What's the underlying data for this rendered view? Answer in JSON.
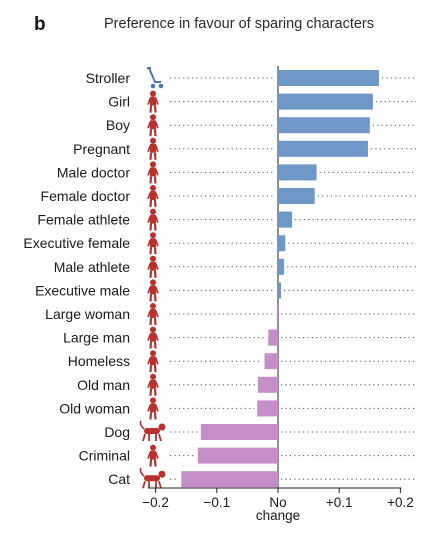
{
  "panel_letter": "b",
  "chart_data": {
    "type": "bar",
    "orientation": "horizontal",
    "title": "Preference in favour of sparing characters",
    "categories": [
      "Stroller",
      "Girl",
      "Boy",
      "Pregnant",
      "Male doctor",
      "Female doctor",
      "Female athlete",
      "Executive female",
      "Male athlete",
      "Executive male",
      "Large woman",
      "Large man",
      "Homeless",
      "Old man",
      "Old woman",
      "Dog",
      "Criminal",
      "Cat"
    ],
    "values": [
      0.165,
      0.155,
      0.15,
      0.147,
      0.063,
      0.06,
      0.023,
      0.012,
      0.01,
      0.005,
      -0.002,
      -0.016,
      -0.022,
      -0.033,
      -0.034,
      -0.126,
      -0.131,
      -0.158
    ],
    "xlim": [
      -0.24,
      0.22
    ],
    "xticks": [
      -0.2,
      -0.1,
      0,
      0.1,
      0.2
    ],
    "xtick_labels": [
      "−0.2",
      "−0.1",
      "No change",
      "+0.1",
      "+0.2"
    ],
    "colors": {
      "positive": "#6f98c9",
      "negative": "#c68ec8",
      "icon_human": "#b8312f",
      "icon_stroller": "#4a79b8",
      "dotted": "#555555"
    },
    "icons": [
      "stroller-icon",
      "girl-icon",
      "boy-icon",
      "pregnant-icon",
      "male-doctor-icon",
      "female-doctor-icon",
      "female-athlete-icon",
      "executive-female-icon",
      "male-athlete-icon",
      "executive-male-icon",
      "large-woman-icon",
      "large-man-icon",
      "homeless-icon",
      "old-man-icon",
      "old-woman-icon",
      "dog-icon",
      "criminal-icon",
      "cat-icon"
    ]
  }
}
